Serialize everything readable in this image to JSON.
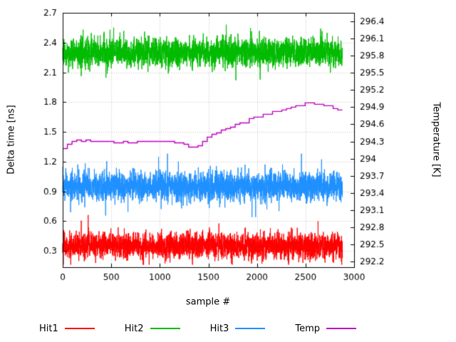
{
  "chart_data": {
    "type": "line",
    "title": "",
    "xlabel": "sample #",
    "ylabel_left": "Delta time [ns]",
    "ylabel_right": "Temperature [K]",
    "x_range": [
      0,
      3000
    ],
    "x_ticks": {
      "values": [
        0,
        500,
        1000,
        1500,
        2000,
        2500,
        3000
      ],
      "labels": [
        "0",
        "500",
        "1000",
        "1500",
        "2000",
        "2500",
        "3000"
      ]
    },
    "y_left_range": [
      0.135,
      2.7
    ],
    "y_left_ticks": {
      "values": [
        0.3,
        0.6,
        0.9,
        1.2,
        1.5,
        1.8,
        2.1,
        2.4,
        2.7
      ],
      "labels": [
        "0.3",
        "0.6",
        "0.9",
        "1.2",
        "1.5",
        "1.8",
        "2.1",
        "2.4",
        "2.7"
      ]
    },
    "y_right_range": [
      292.1,
      296.55
    ],
    "y_right_ticks": {
      "values": [
        292.2,
        292.5,
        292.8,
        293.1,
        293.4,
        293.7,
        294,
        294.3,
        294.6,
        294.9,
        295.2,
        295.5,
        295.8,
        296.1,
        296.4
      ],
      "labels": [
        "292.2",
        "292.5",
        "292.8",
        "293.1",
        "293.4",
        "293.7",
        "294",
        "294.3",
        "294.6",
        "294.9",
        "295.2",
        "295.5",
        "295.8",
        "296.1",
        "296.4"
      ]
    },
    "grid": {
      "show": true,
      "color": "#c4c4c4",
      "style": "dotted"
    },
    "background": "#ffffff",
    "axis_color": "#000000",
    "samples": 2880,
    "legend_position": "bottom",
    "series": [
      {
        "name": "Hit1",
        "color": "#ff0000",
        "axis": "left",
        "kind": "noise",
        "mean": 0.35,
        "sigma": 0.065,
        "spike_prob": 0.004,
        "spike_amp": 0.2,
        "clamp": [
          0.16,
          0.68
        ],
        "seed": 42
      },
      {
        "name": "Hit2",
        "color": "#00bb00",
        "axis": "left",
        "kind": "noise",
        "mean": 2.3,
        "sigma": 0.072,
        "spike_prob": 0.004,
        "spike_amp": 0.2,
        "clamp": [
          2.02,
          2.58
        ],
        "seed": 1337
      },
      {
        "name": "Hit3",
        "color": "#1e90ff",
        "axis": "left",
        "kind": "noise",
        "mean": 0.95,
        "sigma": 0.072,
        "spike_prob": 0.004,
        "spike_amp": 0.2,
        "clamp": [
          0.64,
          1.28
        ],
        "seed": 7
      },
      {
        "name": "Temp",
        "color": "#c000c0",
        "axis": "right",
        "kind": "step",
        "seed": 99,
        "jitter_sigma": 0.012,
        "quantum": 0.025,
        "block": 48,
        "points": [
          [
            0,
            294.1
          ],
          [
            40,
            294.22
          ],
          [
            80,
            294.26
          ],
          [
            150,
            294.3
          ],
          [
            400,
            294.3
          ],
          [
            600,
            294.28
          ],
          [
            800,
            294.3
          ],
          [
            1000,
            294.31
          ],
          [
            1150,
            294.3
          ],
          [
            1250,
            294.27
          ],
          [
            1320,
            294.22
          ],
          [
            1380,
            294.2
          ],
          [
            1420,
            294.24
          ],
          [
            1480,
            294.33
          ],
          [
            1530,
            294.4
          ],
          [
            1600,
            294.46
          ],
          [
            1700,
            294.52
          ],
          [
            1800,
            294.58
          ],
          [
            1900,
            294.66
          ],
          [
            2000,
            294.71
          ],
          [
            2100,
            294.76
          ],
          [
            2200,
            294.81
          ],
          [
            2300,
            294.86
          ],
          [
            2400,
            294.9
          ],
          [
            2500,
            294.94
          ],
          [
            2600,
            294.96
          ],
          [
            2680,
            294.96
          ],
          [
            2750,
            294.93
          ],
          [
            2820,
            294.88
          ],
          [
            2880,
            294.82
          ]
        ]
      }
    ]
  },
  "legend": {
    "items": [
      {
        "label": "Hit1",
        "color": "#ff0000"
      },
      {
        "label": "Hit2",
        "color": "#00bb00"
      },
      {
        "label": "Hit3",
        "color": "#1e90ff"
      },
      {
        "label": "Temp",
        "color": "#c000c0"
      }
    ]
  }
}
